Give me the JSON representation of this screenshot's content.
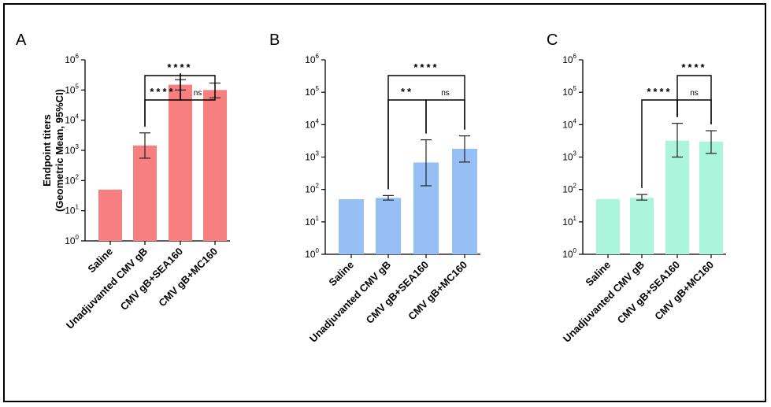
{
  "colors": {
    "A": "#f87f7f",
    "B": "#95bff5",
    "C": "#aaf5dc"
  },
  "ylabel_line1": "Endpoint titers",
  "ylabel_line2": "(Geometric Mean, 95%CI)",
  "chart_data": [
    {
      "panel": "A",
      "type": "bar",
      "yscale": "log10",
      "ylim": [
        1,
        1000000
      ],
      "yticks": [
        "10^0",
        "10^1",
        "10^2",
        "10^3",
        "10^4",
        "10^5",
        "10^6"
      ],
      "categories": [
        "Saline",
        "Unadjuvanted CMV gB",
        "CMV gB+SEA160",
        "CMV gB+MC160"
      ],
      "values": [
        50,
        1450,
        150000,
        100000
      ],
      "ci_low": [
        null,
        550,
        100000,
        55000
      ],
      "ci_high": [
        null,
        3800,
        220000,
        170000
      ],
      "significance": [
        {
          "from": 1,
          "to": 3,
          "label": "****",
          "level": 0
        },
        {
          "from": 1,
          "to": 2,
          "label": "****",
          "level": 1
        },
        {
          "from": 2,
          "to": 3,
          "label": "ns",
          "level": 1
        }
      ]
    },
    {
      "panel": "B",
      "type": "bar",
      "yscale": "log10",
      "ylim": [
        1,
        1000000
      ],
      "yticks": [
        "10^0",
        "10^1",
        "10^2",
        "10^3",
        "10^4",
        "10^5",
        "10^6"
      ],
      "categories": [
        "Saline",
        "Unadjuvanted CMV gB",
        "CMV gB+SEA160",
        "CMV gB+MC160"
      ],
      "values": [
        50,
        55,
        680,
        1800
      ],
      "ci_low": [
        null,
        47,
        130,
        700
      ],
      "ci_high": [
        null,
        65,
        3400,
        4500
      ],
      "significance": [
        {
          "from": 1,
          "to": 3,
          "label": "****",
          "level": 0
        },
        {
          "from": 1,
          "to": 2,
          "label": "**",
          "level": 1
        },
        {
          "from": 2,
          "to": 3,
          "label": "ns",
          "level": 1
        }
      ]
    },
    {
      "panel": "C",
      "type": "bar",
      "yscale": "log10",
      "ylim": [
        1,
        1000000
      ],
      "yticks": [
        "10^0",
        "10^1",
        "10^2",
        "10^3",
        "10^4",
        "10^5",
        "10^6"
      ],
      "categories": [
        "Saline",
        "Unadjuvanted CMV gB",
        "CMV gB+SEA160",
        "CMV gB+MC160"
      ],
      "values": [
        50,
        55,
        3200,
        3000
      ],
      "ci_low": [
        null,
        47,
        1000,
        1300
      ],
      "ci_high": [
        null,
        70,
        11000,
        6500
      ],
      "significance": [
        {
          "from": 2,
          "to": 3,
          "label": "****",
          "level": 0
        },
        {
          "from": 1,
          "to": 2,
          "label": "****",
          "level": 1
        },
        {
          "from": 2,
          "to": 3,
          "label": "ns",
          "level": 1
        }
      ]
    }
  ]
}
